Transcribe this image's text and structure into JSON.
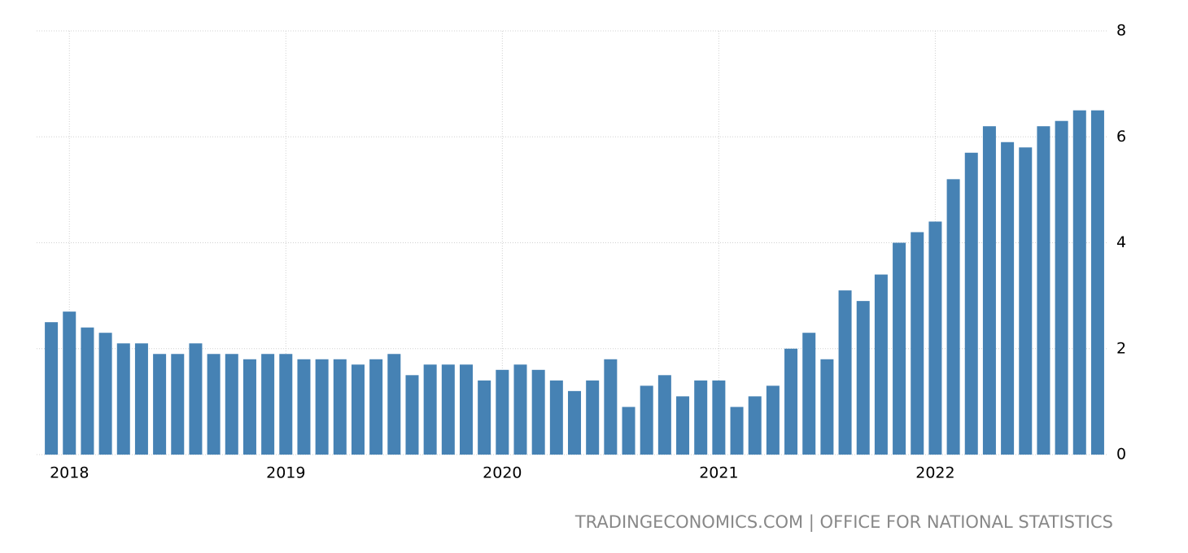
{
  "chart_data": {
    "type": "bar",
    "categories": [
      null,
      "2018",
      null,
      null,
      null,
      null,
      null,
      null,
      null,
      null,
      null,
      null,
      null,
      "2019",
      null,
      null,
      null,
      null,
      null,
      null,
      null,
      null,
      null,
      null,
      null,
      "2020",
      null,
      null,
      null,
      null,
      null,
      null,
      null,
      null,
      null,
      null,
      null,
      "2021",
      null,
      null,
      null,
      null,
      null,
      null,
      null,
      null,
      null,
      null,
      null,
      "2022",
      null,
      null,
      null,
      null,
      null,
      null,
      null,
      null,
      null
    ],
    "values": [
      2.5,
      2.7,
      2.4,
      2.3,
      2.1,
      2.1,
      1.9,
      1.9,
      2.1,
      1.9,
      1.9,
      1.8,
      1.9,
      1.9,
      1.8,
      1.8,
      1.8,
      1.7,
      1.8,
      1.9,
      1.5,
      1.7,
      1.7,
      1.7,
      1.4,
      1.6,
      1.7,
      1.6,
      1.4,
      1.2,
      1.4,
      1.8,
      0.9,
      1.3,
      1.5,
      1.1,
      1.4,
      1.4,
      0.9,
      1.1,
      1.3,
      2.0,
      2.3,
      1.8,
      3.1,
      2.9,
      3.4,
      4.0,
      4.2,
      4.4,
      5.2,
      5.7,
      6.2,
      5.9,
      5.8,
      6.2,
      6.3,
      6.5,
      6.5
    ],
    "color": "#4682b4",
    "ylim": [
      0,
      8
    ],
    "yticks": [
      0,
      2,
      4,
      6,
      8
    ],
    "grid": true,
    "source": "TRADINGECONOMICS.COM | OFFICE FOR NATIONAL STATISTICS"
  }
}
